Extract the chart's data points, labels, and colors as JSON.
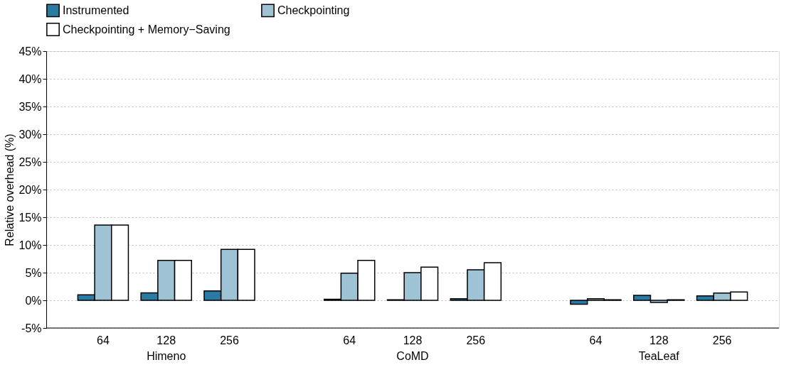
{
  "chart_data": {
    "type": "bar",
    "ylabel": "Relative overhead (%)",
    "categories": [
      "64",
      "128",
      "256",
      "64",
      "128",
      "256",
      "64",
      "128",
      "256"
    ],
    "annotations": [
      "Himeno",
      "CoMD",
      "TeaLeaf"
    ],
    "series": [
      {
        "name": "Instrumented",
        "color": "#2a7ba3",
        "values": [
          1.0,
          1.35,
          1.7,
          0.2,
          0.1,
          0.3,
          -0.7,
          0.9,
          0.8
        ]
      },
      {
        "name": "Checkpointing",
        "color": "#9dc3d5",
        "values": [
          13.6,
          7.2,
          9.2,
          4.9,
          5.0,
          5.5,
          0.3,
          -0.4,
          1.3
        ]
      },
      {
        "name": "Checkpointing + Memory−Saving",
        "color": "#ffffff",
        "values": [
          13.6,
          7.2,
          9.2,
          7.2,
          6.0,
          6.8,
          0.1,
          0.1,
          1.5
        ]
      }
    ],
    "ylim": [
      -5,
      45
    ],
    "yticks": [
      {
        "value": -5,
        "label": "-5%"
      },
      {
        "value": 0,
        "label": "0%"
      },
      {
        "value": 5,
        "label": "5%"
      },
      {
        "value": 10,
        "label": "10%"
      },
      {
        "value": 15,
        "label": "15%"
      },
      {
        "value": 20,
        "label": "20%"
      },
      {
        "value": 25,
        "label": "25%"
      },
      {
        "value": 30,
        "label": "30%"
      },
      {
        "value": 35,
        "label": "35%"
      },
      {
        "value": 40,
        "label": "40%"
      },
      {
        "value": 45,
        "label": "45%"
      }
    ],
    "grid": "y",
    "legend": "top"
  }
}
